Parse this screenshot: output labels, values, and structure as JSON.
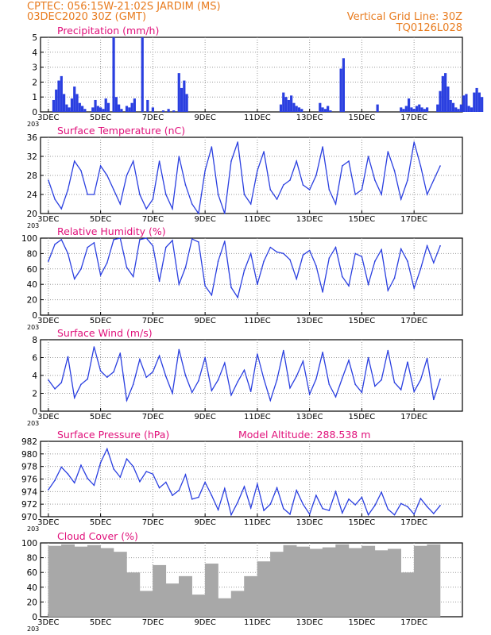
{
  "header": {
    "line1": "CPTEC:   056:15W-21:02S  JARDIM (MS)",
    "line2": "03DEC2020 30Z (GMT)",
    "grid_note": "Vertical Grid Line: 30Z",
    "model_code": "TQ0126L028"
  },
  "x_axis": {
    "ticks": [
      "3DEC",
      "5DEC",
      "7DEC",
      "9DEC",
      "11DEC",
      "13DEC",
      "15DEC",
      "17DEC"
    ],
    "fragment": "203"
  },
  "colors": {
    "line": "#2a3fe0",
    "bars": "#2a3fe0",
    "cloud": "#a8a8a8",
    "title": "#e0107a",
    "header": "#e87b1e"
  },
  "chart_data": [
    {
      "type": "bar",
      "title": "Precipitation (mm/h)",
      "ylim": [
        0,
        5
      ],
      "yticks": [
        "0",
        "1",
        "2",
        "3",
        "4",
        "5"
      ],
      "x_days": [
        0.2,
        0.3,
        0.4,
        0.5,
        0.6,
        0.7,
        0.8,
        0.9,
        1.0,
        1.1,
        1.2,
        1.3,
        1.4,
        1.7,
        1.8,
        1.9,
        2.0,
        2.1,
        2.2,
        2.3,
        2.5,
        2.6,
        2.7,
        2.8,
        3.0,
        3.1,
        3.2,
        3.3,
        3.6,
        3.8,
        4.0,
        4.4,
        4.6,
        4.8,
        5.0,
        5.1,
        5.2,
        5.3,
        8.9,
        9.0,
        9.1,
        9.2,
        9.3,
        9.4,
        9.5,
        9.6,
        9.7,
        10.4,
        10.5,
        10.6,
        10.7,
        10.8,
        11.2,
        11.3,
        12.6,
        13.5,
        13.6,
        13.7,
        13.8,
        13.9,
        14.0,
        14.1,
        14.2,
        14.3,
        14.4,
        14.5,
        14.9,
        15.0,
        15.1,
        15.2,
        15.3,
        15.4,
        15.5,
        15.6,
        15.7,
        15.8,
        15.9,
        16.0,
        16.1,
        16.2,
        16.3,
        16.4,
        16.5,
        16.6
      ],
      "values": [
        0.8,
        1.5,
        2.1,
        2.4,
        1.2,
        0.5,
        0.3,
        0.9,
        1.7,
        1.2,
        0.6,
        0.4,
        0.2,
        0.3,
        0.8,
        0.4,
        0.3,
        0.2,
        0.9,
        0.6,
        5.0,
        1.0,
        0.5,
        0.2,
        0.4,
        0.3,
        0.6,
        0.9,
        5.0,
        0.8,
        0.3,
        0.1,
        0.2,
        0.1,
        2.6,
        1.6,
        2.1,
        1.2,
        0.5,
        1.3,
        1.0,
        0.8,
        1.1,
        0.6,
        0.4,
        0.3,
        0.2,
        0.6,
        0.3,
        0.2,
        0.4,
        0.1,
        2.9,
        3.6,
        0.5,
        0.3,
        0.2,
        0.4,
        0.9,
        0.3,
        0.2,
        0.4,
        0.5,
        0.3,
        0.2,
        0.3,
        0.5,
        1.4,
        2.4,
        2.6,
        1.7,
        0.8,
        0.6,
        0.3,
        0.2,
        0.5,
        1.1,
        1.2,
        0.4,
        0.3,
        1.3,
        1.6,
        1.3,
        1.0
      ]
    },
    {
      "type": "line",
      "title": "Surface Temperature (nC)",
      "ylim": [
        20,
        36
      ],
      "yticks": [
        "20",
        "24",
        "28",
        "32",
        "36"
      ],
      "x_days": [
        0,
        0.25,
        0.5,
        0.75,
        1.0,
        1.25,
        1.5,
        1.75,
        2.0,
        2.25,
        2.5,
        2.75,
        3.0,
        3.25,
        3.5,
        3.75,
        4.0,
        4.25,
        4.5,
        4.75,
        5.0,
        5.25,
        5.5,
        5.75,
        6.0,
        6.25,
        6.5,
        6.75,
        7.0,
        7.25,
        7.5,
        7.75,
        8.0,
        8.25,
        8.5,
        8.75,
        9.0,
        9.25,
        9.5,
        9.75,
        10.0,
        10.25,
        10.5,
        10.75,
        11.0,
        11.25,
        11.5,
        11.75,
        12.0,
        12.25,
        12.5,
        12.75,
        13.0,
        13.25,
        13.5,
        13.75,
        14.0,
        14.25,
        14.5,
        14.75,
        15.0
      ],
      "values": [
        27,
        23,
        21,
        25,
        31,
        29,
        24,
        24,
        30,
        28,
        25,
        22,
        28,
        31,
        24,
        21,
        23,
        31,
        24,
        21,
        32,
        26,
        22,
        20,
        29,
        34,
        24,
        20,
        31,
        35,
        24,
        22,
        29,
        33,
        25,
        23,
        26,
        27,
        31,
        26,
        25,
        28,
        34,
        25,
        22,
        30,
        31,
        24,
        25,
        32,
        27,
        24,
        33,
        29,
        23,
        27,
        35,
        30,
        24,
        27,
        30
      ]
    },
    {
      "type": "line",
      "title": "Relative Humidity (%)",
      "ylim": [
        0,
        100
      ],
      "yticks": [
        "0",
        "20",
        "40",
        "60",
        "80",
        "100"
      ],
      "x_days": [
        0,
        0.25,
        0.5,
        0.75,
        1.0,
        1.25,
        1.5,
        1.75,
        2.0,
        2.25,
        2.5,
        2.75,
        3.0,
        3.25,
        3.5,
        3.75,
        4.0,
        4.25,
        4.5,
        4.75,
        5.0,
        5.25,
        5.5,
        5.75,
        6.0,
        6.25,
        6.5,
        6.75,
        7.0,
        7.25,
        7.5,
        7.75,
        8.0,
        8.25,
        8.5,
        8.75,
        9.0,
        9.25,
        9.5,
        9.75,
        10.0,
        10.25,
        10.5,
        10.75,
        11.0,
        11.25,
        11.5,
        11.75,
        12.0,
        12.25,
        12.5,
        12.75,
        13.0,
        13.25,
        13.5,
        13.75,
        14.0,
        14.25,
        14.5,
        14.75,
        15.0
      ],
      "values": [
        70,
        92,
        98,
        80,
        47,
        60,
        88,
        94,
        52,
        68,
        98,
        100,
        62,
        50,
        98,
        100,
        90,
        44,
        88,
        97,
        40,
        62,
        99,
        95,
        38,
        26,
        70,
        96,
        36,
        23,
        58,
        80,
        40,
        70,
        88,
        82,
        80,
        72,
        47,
        78,
        84,
        64,
        30,
        74,
        88,
        50,
        38,
        80,
        76,
        40,
        70,
        85,
        32,
        48,
        86,
        70,
        35,
        60,
        90,
        68,
        90
      ]
    },
    {
      "type": "line",
      "title": "Surface Wind (m/s)",
      "ylim": [
        0,
        8
      ],
      "yticks": [
        "0",
        "2",
        "4",
        "6",
        "8"
      ],
      "x_days": [
        0,
        0.25,
        0.5,
        0.75,
        1.0,
        1.25,
        1.5,
        1.75,
        2.0,
        2.25,
        2.5,
        2.75,
        3.0,
        3.25,
        3.5,
        3.75,
        4.0,
        4.25,
        4.5,
        4.75,
        5.0,
        5.25,
        5.5,
        5.75,
        6.0,
        6.25,
        6.5,
        6.75,
        7.0,
        7.25,
        7.5,
        7.75,
        8.0,
        8.25,
        8.5,
        8.75,
        9.0,
        9.25,
        9.5,
        9.75,
        10.0,
        10.25,
        10.5,
        10.75,
        11.0,
        11.25,
        11.5,
        11.75,
        12.0,
        12.25,
        12.5,
        12.75,
        13.0,
        13.25,
        13.5,
        13.75,
        14.0,
        14.25,
        14.5,
        14.75,
        15.0
      ],
      "values": [
        3.5,
        2.5,
        3.2,
        6.1,
        1.5,
        3.0,
        3.6,
        7.2,
        4.5,
        3.8,
        4.4,
        6.5,
        1.2,
        3.0,
        5.8,
        3.8,
        4.4,
        6.2,
        3.9,
        2.0,
        6.9,
        4.0,
        2.1,
        3.4,
        6.0,
        2.3,
        3.5,
        5.4,
        1.8,
        3.3,
        4.6,
        2.2,
        6.4,
        3.6,
        1.2,
        3.5,
        6.8,
        2.6,
        3.9,
        5.6,
        1.9,
        3.6,
        6.6,
        3.0,
        1.6,
        3.7,
        5.7,
        3.0,
        2.1,
        6.0,
        2.8,
        3.5,
        6.8,
        3.2,
        2.4,
        5.5,
        2.2,
        3.5,
        5.9,
        1.3,
        3.6
      ]
    },
    {
      "type": "line",
      "title": "Surface Pressure (hPa)",
      "annotation": "Model Altitude: 288.538 m",
      "ylim": [
        970,
        982
      ],
      "yticks": [
        "970",
        "972",
        "974",
        "976",
        "978",
        "980",
        "982"
      ],
      "x_days": [
        0,
        0.25,
        0.5,
        0.75,
        1.0,
        1.25,
        1.5,
        1.75,
        2.0,
        2.25,
        2.5,
        2.75,
        3.0,
        3.25,
        3.5,
        3.75,
        4.0,
        4.25,
        4.5,
        4.75,
        5.0,
        5.25,
        5.5,
        5.75,
        6.0,
        6.25,
        6.5,
        6.75,
        7.0,
        7.25,
        7.5,
        7.75,
        8.0,
        8.25,
        8.5,
        8.75,
        9.0,
        9.25,
        9.5,
        9.75,
        10.0,
        10.25,
        10.5,
        10.75,
        11.0,
        11.25,
        11.5,
        11.75,
        12.0,
        12.25,
        12.5,
        12.75,
        13.0,
        13.25,
        13.5,
        13.75,
        14.0,
        14.25,
        14.5,
        14.75,
        15.0
      ],
      "values": [
        974.3,
        975.8,
        977.9,
        976.8,
        975.4,
        978.2,
        976.1,
        975.0,
        978.6,
        980.8,
        977.6,
        976.3,
        979.2,
        978.0,
        975.6,
        977.2,
        976.8,
        974.6,
        975.5,
        973.4,
        974.2,
        976.7,
        972.8,
        973.1,
        975.5,
        973.4,
        971.1,
        974.5,
        970.3,
        972.3,
        974.8,
        971.4,
        975.2,
        971.0,
        972.0,
        974.6,
        971.3,
        970.4,
        974.2,
        972.0,
        970.4,
        973.4,
        971.3,
        971.0,
        974.0,
        970.6,
        972.8,
        971.9,
        973.1,
        970.3,
        971.8,
        973.9,
        971.2,
        970.3,
        972.1,
        971.6,
        970.4,
        972.9,
        971.6,
        970.5,
        971.8
      ]
    },
    {
      "type": "bar",
      "title": "Cloud Cover (%)",
      "ylim": [
        0,
        100
      ],
      "yticks": [
        "0",
        "20",
        "40",
        "60",
        "80",
        "100"
      ],
      "x_days": [
        0.25,
        0.75,
        1.25,
        1.75,
        2.25,
        2.75,
        3.25,
        3.75,
        4.25,
        4.75,
        5.25,
        5.75,
        6.25,
        6.75,
        7.25,
        7.75,
        8.25,
        8.75,
        9.25,
        9.75,
        10.25,
        10.75,
        11.25,
        11.75,
        12.25,
        12.75,
        13.25,
        13.75,
        14.25,
        14.75
      ],
      "values": [
        96,
        98,
        95,
        97,
        93,
        88,
        60,
        35,
        70,
        45,
        55,
        30,
        72,
        25,
        35,
        55,
        75,
        88,
        97,
        95,
        92,
        94,
        98,
        93,
        96,
        90,
        92,
        60,
        96,
        98
      ]
    }
  ]
}
